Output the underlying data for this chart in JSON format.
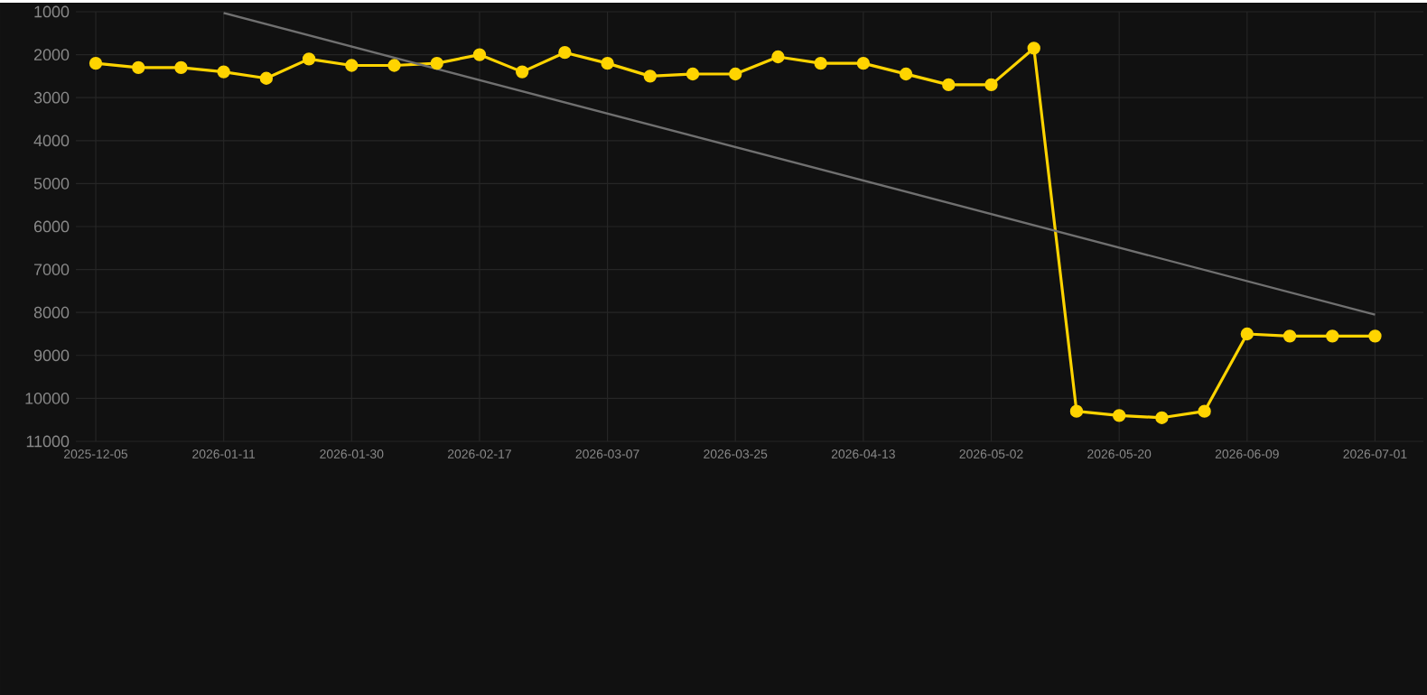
{
  "chart_data": {
    "type": "line",
    "categories": [
      "2025-12-05",
      null,
      null,
      "2026-01-11",
      null,
      null,
      "2026-01-30",
      null,
      null,
      "2026-02-17",
      null,
      null,
      "2026-03-07",
      null,
      null,
      "2026-03-25",
      null,
      null,
      "2026-04-13",
      null,
      null,
      "2026-05-02",
      null,
      null,
      "2026-05-20",
      null,
      null,
      "2026-06-09",
      null,
      null,
      "2026-07-01"
    ],
    "series": [
      {
        "color": "#ffd400",
        "marker": "circle",
        "values": [
          2200,
          2300,
          2300,
          2400,
          2550,
          2100,
          2250,
          2250,
          2200,
          2000,
          2400,
          1950,
          2200,
          2500,
          2450,
          2450,
          2050,
          2200,
          2200,
          2450,
          2700,
          2700,
          1850,
          10300,
          10400,
          10450,
          10300,
          8500,
          8550,
          8550,
          8550
        ]
      },
      {
        "color": "#707070",
        "marker": "none",
        "values": [
          null,
          null,
          null,
          1030,
          null,
          null,
          null,
          null,
          null,
          null,
          null,
          null,
          null,
          null,
          null,
          null,
          null,
          null,
          null,
          null,
          null,
          null,
          null,
          null,
          null,
          null,
          null,
          null,
          null,
          null,
          8050
        ]
      }
    ],
    "ylim": [
      11000,
      1000
    ],
    "yticks": [
      1000,
      2000,
      3000,
      4000,
      5000,
      6000,
      7000,
      8000,
      9000,
      10000,
      11000
    ],
    "grid": true,
    "line_style": "solid"
  }
}
